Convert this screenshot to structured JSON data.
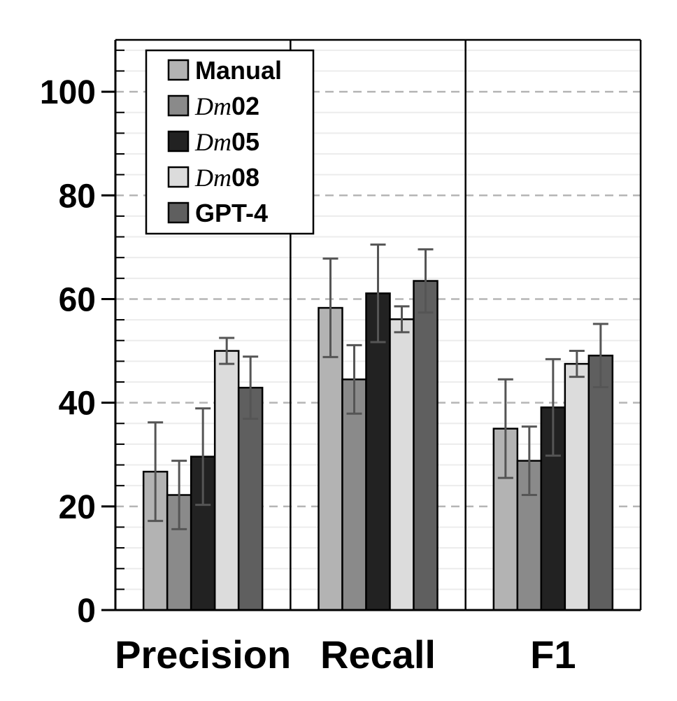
{
  "chart_data": {
    "type": "bar",
    "categories": [
      "Precision",
      "Recall",
      "F1"
    ],
    "ylim": [
      0,
      110
    ],
    "y_ticks": [
      0,
      20,
      40,
      60,
      80,
      100
    ],
    "grid": "dashed major lines at every 20, light minor lines at every 4",
    "legend_position": "top-left",
    "series": [
      {
        "name": "Manual",
        "name_parts": [
          {
            "text": "Manual",
            "style": "bold"
          }
        ],
        "color": "#b3b3b3",
        "values": [
          26.7,
          58.3,
          35.0
        ],
        "errors": [
          9.5,
          9.5,
          9.5
        ]
      },
      {
        "name": "Dm02",
        "name_parts": [
          {
            "text": "Dm",
            "style": "italic"
          },
          {
            "text": "02",
            "style": "bold"
          }
        ],
        "color": "#8a8a8a",
        "values": [
          22.2,
          44.5,
          28.8
        ],
        "errors": [
          6.6,
          6.6,
          6.6
        ]
      },
      {
        "name": "Dm05",
        "name_parts": [
          {
            "text": "Dm",
            "style": "italic"
          },
          {
            "text": "05",
            "style": "bold"
          }
        ],
        "color": "#222222",
        "values": [
          29.6,
          61.1,
          39.1
        ],
        "errors": [
          9.3,
          9.4,
          9.3
        ]
      },
      {
        "name": "Dm08",
        "name_parts": [
          {
            "text": "Dm",
            "style": "italic"
          },
          {
            "text": "08",
            "style": "bold"
          }
        ],
        "color": "#dcdcdc",
        "values": [
          50.0,
          56.1,
          47.5
        ],
        "errors": [
          2.5,
          2.5,
          2.5
        ]
      },
      {
        "name": "GPT-4",
        "name_parts": [
          {
            "text": "GPT-4",
            "style": "bold"
          }
        ],
        "color": "#5f5f5f",
        "values": [
          42.9,
          63.5,
          49.1
        ],
        "errors": [
          6.0,
          6.1,
          6.1
        ]
      }
    ]
  }
}
